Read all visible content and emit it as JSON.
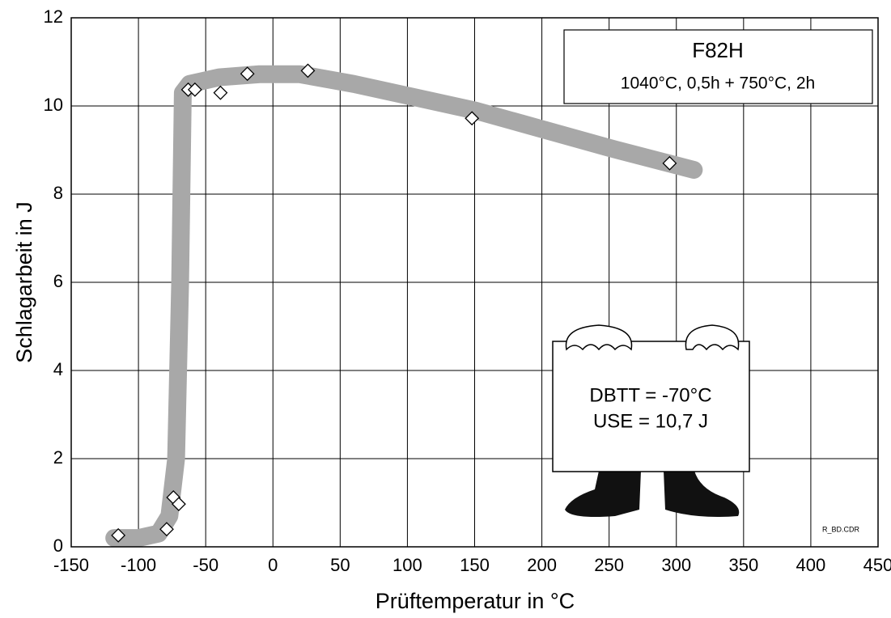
{
  "chart_data": {
    "type": "scatter",
    "xlabel": "Prüftemperatur in °C",
    "ylabel": "Schlagarbeit in J",
    "x": [
      -115,
      -79,
      -74,
      -70,
      -63,
      -58,
      -39,
      -19,
      26,
      148,
      295
    ],
    "values": [
      0.26,
      0.4,
      1.12,
      0.97,
      10.37,
      10.37,
      10.3,
      10.73,
      10.8,
      9.72,
      8.7
    ],
    "color": "#ffffff",
    "trend": {
      "color": "#a8a8a8",
      "x": [
        -118,
        -100,
        -85,
        -77,
        -72,
        -69,
        -67,
        -62,
        -40,
        -10,
        20,
        60,
        150,
        250,
        313
      ],
      "y": [
        0.2,
        0.2,
        0.3,
        0.7,
        2,
        6,
        10.3,
        10.5,
        10.65,
        10.72,
        10.72,
        10.5,
        9.9,
        9.05,
        8.55
      ]
    },
    "xlim": [
      -150,
      450
    ],
    "ylim": [
      0,
      12
    ],
    "xticks": [
      -150,
      -100,
      -50,
      0,
      50,
      100,
      150,
      200,
      250,
      300,
      350,
      400,
      450
    ],
    "yticks": [
      0,
      2,
      4,
      6,
      8,
      10,
      12
    ],
    "grid": true,
    "annotations": [
      "F82H",
      "1040°C, 0,5h + 750°C, 2h",
      "DBTT = -70°C",
      "USE = 10,7 J",
      "R_BD.CDR"
    ]
  }
}
